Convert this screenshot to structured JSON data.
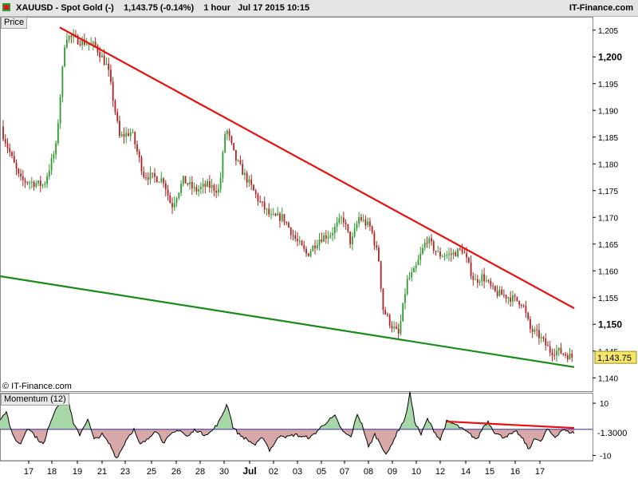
{
  "header": {
    "symbol": "XAUUSD - Spot Gold (-)",
    "quote": "1,143.75 (-0.14%)",
    "interval": "1 hour",
    "datetime": "Jul 17 2015 10:15",
    "brand": "IT-Finance.com"
  },
  "price_panel": {
    "label": "Price",
    "copyright": "© IT-Finance.com",
    "last_price_label": "1,143.75",
    "colors": {
      "up": "#2e9b2e",
      "down": "#b22222",
      "resistance": "#e81010",
      "support": "#1a8a1a",
      "last_bg": "#f5e66a"
    }
  },
  "momentum_panel": {
    "label": "Momentum (12)",
    "last_value_label": "-1.3000",
    "colors": {
      "pos_fill": "#a8d8a8",
      "neg_fill": "#d8a8a8",
      "line": "#000000",
      "zero": "#5a50b0",
      "trend": "#e81010"
    }
  },
  "chart_data": [
    {
      "type": "candlestick",
      "title": "XAUUSD - Spot Gold (-)",
      "ylabel": "Price",
      "ylim": [
        1137.5,
        1207.5
      ],
      "y_ticks": [
        "1,205",
        "1,200",
        "1,195",
        "1,190",
        "1,185",
        "1,180",
        "1,175",
        "1,170",
        "1,165",
        "1,160",
        "1,155",
        "1,150",
        "1,145",
        "1,140"
      ],
      "y_ticks_bold": [
        "1,200",
        "1,150"
      ],
      "x_ticks": [
        "17",
        "18",
        "19",
        "21",
        "23",
        "25",
        "26",
        "28",
        "30",
        "Jul",
        "02",
        "03",
        "05",
        "07",
        "08",
        "09",
        "10",
        "12",
        "14",
        "15",
        "16",
        "17"
      ],
      "anchors": [
        [
          0,
          1187
        ],
        [
          25,
          1177
        ],
        [
          55,
          1176
        ],
        [
          70,
          1183
        ],
        [
          82,
          1204
        ],
        [
          100,
          1203
        ],
        [
          120,
          1202
        ],
        [
          135,
          1198
        ],
        [
          150,
          1185
        ],
        [
          165,
          1186
        ],
        [
          180,
          1178
        ],
        [
          205,
          1177
        ],
        [
          215,
          1172
        ],
        [
          230,
          1177
        ],
        [
          245,
          1175
        ],
        [
          260,
          1176
        ],
        [
          275,
          1175
        ],
        [
          283,
          1187
        ],
        [
          295,
          1181
        ],
        [
          310,
          1177
        ],
        [
          325,
          1173
        ],
        [
          340,
          1170
        ],
        [
          355,
          1170
        ],
        [
          370,
          1166
        ],
        [
          385,
          1163
        ],
        [
          400,
          1166
        ],
        [
          415,
          1167
        ],
        [
          430,
          1170
        ],
        [
          440,
          1165
        ],
        [
          450,
          1170
        ],
        [
          465,
          1168
        ],
        [
          475,
          1162
        ],
        [
          480,
          1153
        ],
        [
          490,
          1150
        ],
        [
          500,
          1148
        ],
        [
          510,
          1158
        ],
        [
          520,
          1160
        ],
        [
          535,
          1166
        ],
        [
          550,
          1163
        ],
        [
          565,
          1163
        ],
        [
          580,
          1164
        ],
        [
          595,
          1158
        ],
        [
          605,
          1159
        ],
        [
          620,
          1156
        ],
        [
          640,
          1155
        ],
        [
          655,
          1154
        ],
        [
          665,
          1149
        ],
        [
          675,
          1148
        ],
        [
          690,
          1145
        ],
        [
          700,
          1145
        ],
        [
          715,
          1144
        ],
        [
          720,
          1143.75
        ]
      ],
      "trendlines": [
        {
          "name": "resistance",
          "from": [
            "18",
            1205.5
          ],
          "to": [
            "17",
            1153
          ]
        },
        {
          "name": "support",
          "from": [
            "17",
            1159
          ],
          "to": [
            "17",
            1142
          ]
        }
      ],
      "last_value": 1143.75,
      "change_pct": -0.14
    },
    {
      "type": "area",
      "title": "Momentum (12)",
      "ylim": [
        -12,
        14
      ],
      "y_ticks": [
        "10",
        "-10"
      ],
      "zero_line": 0,
      "anchors": [
        [
          0,
          4
        ],
        [
          8,
          7
        ],
        [
          15,
          -2
        ],
        [
          25,
          -6
        ],
        [
          35,
          1
        ],
        [
          45,
          -3
        ],
        [
          55,
          -6
        ],
        [
          62,
          2
        ],
        [
          70,
          8
        ],
        [
          78,
          12
        ],
        [
          86,
          11
        ],
        [
          92,
          2
        ],
        [
          100,
          -2
        ],
        [
          110,
          4
        ],
        [
          118,
          -4
        ],
        [
          128,
          -2
        ],
        [
          138,
          -6
        ],
        [
          146,
          -11
        ],
        [
          152,
          -8
        ],
        [
          160,
          -3
        ],
        [
          168,
          0
        ],
        [
          175,
          -6
        ],
        [
          185,
          -4
        ],
        [
          195,
          0
        ],
        [
          205,
          -5
        ],
        [
          215,
          -2
        ],
        [
          225,
          0
        ],
        [
          235,
          -3
        ],
        [
          245,
          0
        ],
        [
          255,
          -2
        ],
        [
          265,
          -1
        ],
        [
          275,
          3
        ],
        [
          285,
          10
        ],
        [
          292,
          1
        ],
        [
          300,
          -2
        ],
        [
          310,
          -4
        ],
        [
          320,
          -6
        ],
        [
          330,
          -3
        ],
        [
          338,
          -8
        ],
        [
          345,
          -5
        ],
        [
          352,
          -2
        ],
        [
          360,
          -3
        ],
        [
          370,
          -2
        ],
        [
          380,
          -3
        ],
        [
          390,
          -3
        ],
        [
          400,
          0
        ],
        [
          410,
          3
        ],
        [
          420,
          5
        ],
        [
          430,
          -1
        ],
        [
          440,
          -3
        ],
        [
          448,
          6
        ],
        [
          455,
          1
        ],
        [
          462,
          -7
        ],
        [
          470,
          -2
        ],
        [
          478,
          -6
        ],
        [
          485,
          -10
        ],
        [
          492,
          -5
        ],
        [
          500,
          0
        ],
        [
          508,
          4
        ],
        [
          514,
          14
        ],
        [
          520,
          3
        ],
        [
          528,
          -2
        ],
        [
          536,
          4
        ],
        [
          545,
          -1
        ],
        [
          552,
          -4
        ],
        [
          560,
          3
        ],
        [
          570,
          2
        ],
        [
          580,
          0
        ],
        [
          590,
          -2
        ],
        [
          598,
          -4
        ],
        [
          606,
          1
        ],
        [
          612,
          3
        ],
        [
          620,
          -1
        ],
        [
          630,
          -3
        ],
        [
          640,
          -2
        ],
        [
          648,
          -1
        ],
        [
          656,
          -4
        ],
        [
          664,
          -8
        ],
        [
          670,
          -3
        ],
        [
          678,
          -5
        ],
        [
          686,
          0
        ],
        [
          696,
          -3
        ],
        [
          705,
          0
        ],
        [
          712,
          -1
        ],
        [
          720,
          -1.3
        ]
      ],
      "trendline": {
        "from": [
          "10",
          3
        ],
        "to": [
          "17",
          0.5
        ]
      },
      "last_value": -1.3
    }
  ]
}
